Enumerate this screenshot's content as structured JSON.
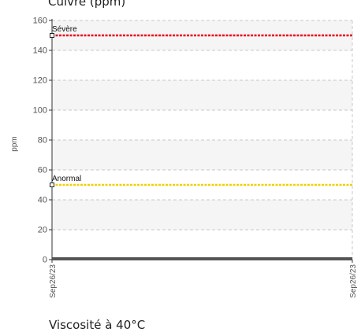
{
  "chart_data": {
    "type": "line",
    "title": "Cuivre (ppm)",
    "xlabel": "",
    "ylabel": "ppm",
    "ylim": [
      0,
      160
    ],
    "yticks": [
      0,
      20,
      40,
      60,
      80,
      100,
      120,
      140,
      160
    ],
    "x": [
      "Sep26/23",
      "Sep26/23"
    ],
    "grid": true,
    "thresholds": [
      {
        "label": "Sévère",
        "value": 150,
        "color": "#e8001c"
      },
      {
        "label": "Anormal",
        "value": 50,
        "color": "#f0d000"
      }
    ],
    "series": [
      {
        "values": [
          0,
          0
        ],
        "color": "#555555"
      }
    ]
  },
  "footer": {
    "text": "Viscosité à 40°C"
  }
}
